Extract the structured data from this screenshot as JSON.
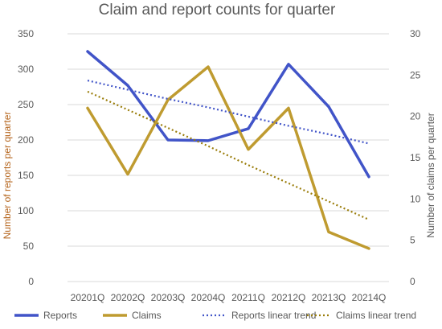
{
  "chart_data": {
    "type": "line",
    "title": "Claim and report counts for quarter",
    "categories": [
      "20201Q",
      "20202Q",
      "20203Q",
      "20204Q",
      "20211Q",
      "20212Q",
      "20213Q",
      "20214Q"
    ],
    "left_axis": {
      "label": "Number of reports per quarter",
      "ticks": [
        0,
        50,
        100,
        150,
        200,
        250,
        300,
        350
      ],
      "range": [
        0,
        350
      ]
    },
    "right_axis": {
      "label": "Number of claims per quarter",
      "ticks": [
        0,
        5,
        10,
        15,
        20,
        25,
        30
      ],
      "range": [
        0,
        30
      ]
    },
    "series": [
      {
        "name": "Reports",
        "axis": "left",
        "style": "solid",
        "color": "#4154c8",
        "values": [
          325,
          277,
          200,
          199,
          216,
          307,
          247,
          148
        ]
      },
      {
        "name": "Claims",
        "axis": "right",
        "style": "solid",
        "color": "#bf9b30",
        "values": [
          21,
          13,
          22,
          26,
          16,
          21,
          6,
          4
        ]
      },
      {
        "name": "Reports linear trend",
        "axis": "left",
        "style": "dotted",
        "color": "#4154c8",
        "values": [
          284,
          271,
          258,
          246,
          233,
          220,
          208,
          195
        ]
      },
      {
        "name": "Claims linear trend",
        "axis": "right",
        "style": "dotted",
        "color": "#9a7d0a",
        "values": [
          23,
          20.8,
          18.6,
          16.4,
          14.1,
          11.9,
          9.7,
          7.5
        ]
      }
    ],
    "grid": true,
    "legend_position": "bottom"
  }
}
